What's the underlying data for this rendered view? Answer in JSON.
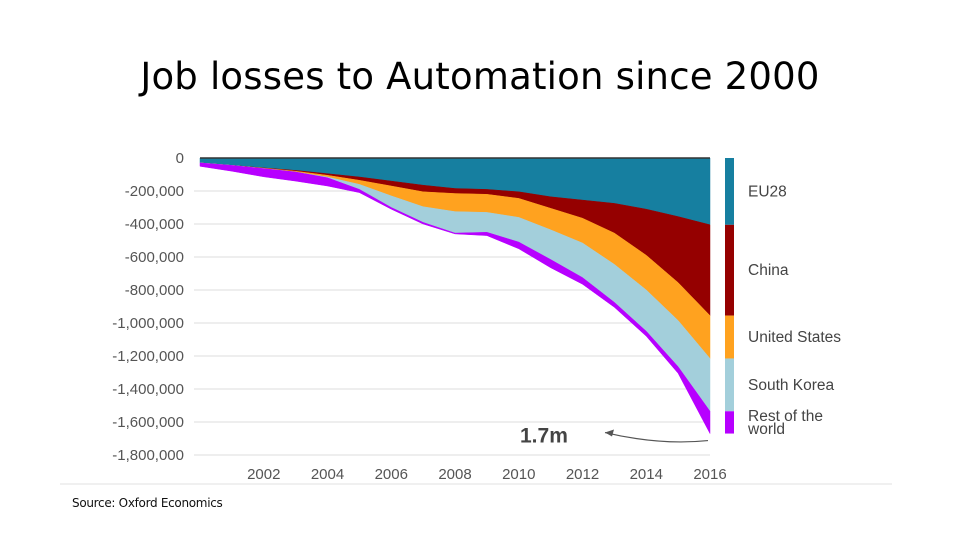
{
  "slide": {
    "title": "Job losses to Automation since 2000",
    "source": "Source: Oxford Economics"
  },
  "chart_data": {
    "type": "area",
    "title": "Job losses to Automation since 2000",
    "stacked": true,
    "x": [
      2000,
      2001,
      2002,
      2003,
      2004,
      2005,
      2006,
      2007,
      2008,
      2009,
      2010,
      2011,
      2012,
      2013,
      2014,
      2015,
      2016
    ],
    "x_ticks": [
      "2002",
      "2004",
      "2006",
      "2008",
      "2010",
      "2012",
      "2014",
      "2016"
    ],
    "y_ticks": [
      "0",
      "-200,000",
      "-400,000",
      "-600,000",
      "-800,000",
      "-1,000,000",
      "-1,200,000",
      "-1,400,000",
      "-1,600,000",
      "-1,800,000"
    ],
    "ylim": [
      -1800000,
      0
    ],
    "series": [
      {
        "name": "EU28",
        "color": "#167fa0",
        "values": [
          -30000,
          -45000,
          -60000,
          -75000,
          -95000,
          -115000,
          -140000,
          -165000,
          -185000,
          -190000,
          -205000,
          -235000,
          -255000,
          -275000,
          -310000,
          -355000,
          -405000
        ]
      },
      {
        "name": "China",
        "color": "#950000",
        "values": [
          0,
          0,
          -2000,
          -5000,
          -10000,
          -20000,
          -30000,
          -40000,
          -30000,
          -30000,
          -40000,
          -70000,
          -110000,
          -180000,
          -280000,
          -400000,
          -550000
        ]
      },
      {
        "name": "United States",
        "color": "#ffa21f",
        "values": [
          0,
          0,
          -2000,
          -5000,
          -10000,
          -25000,
          -60000,
          -90000,
          -110000,
          -110000,
          -115000,
          -130000,
          -150000,
          -190000,
          -210000,
          -230000,
          -260000
        ]
      },
      {
        "name": "South Korea",
        "color": "#a3cfdb",
        "values": [
          0,
          0,
          0,
          0,
          -5000,
          -30000,
          -70000,
          -95000,
          -130000,
          -120000,
          -150000,
          -180000,
          -210000,
          -230000,
          -250000,
          -280000,
          -320000
        ]
      },
      {
        "name": "Rest of the world",
        "color": "#b700ff",
        "values": [
          -20000,
          -35000,
          -50000,
          -55000,
          -50000,
          -20000,
          -10000,
          -10000,
          -5000,
          -20000,
          -40000,
          -50000,
          -40000,
          -30000,
          -30000,
          -40000,
          -135000
        ]
      }
    ],
    "annotation": "1.7m",
    "legend_position": "right"
  }
}
